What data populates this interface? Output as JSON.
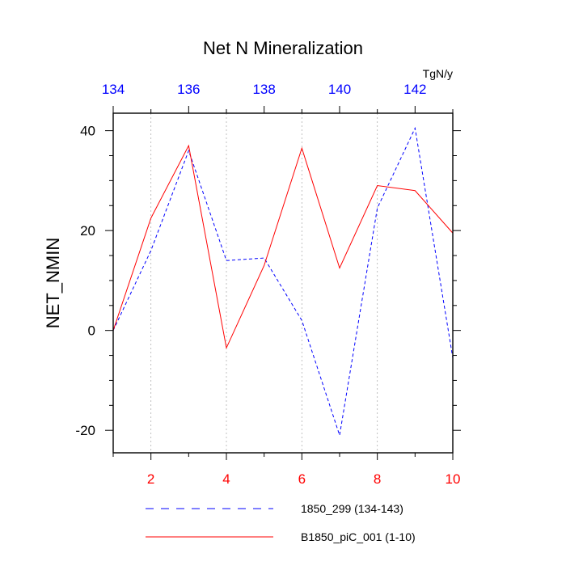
{
  "chart_data": {
    "type": "line",
    "title": "Net N Mineralization",
    "ylabel": "NET_NMIN",
    "units": "TgN/y",
    "xlim": [
      1,
      10
    ],
    "ylim": [
      -24.5,
      43.5
    ],
    "top_xlim": [
      134,
      143
    ],
    "bottom_ticks": [
      2,
      4,
      6,
      8,
      10
    ],
    "top_ticks": [
      134,
      136,
      138,
      140,
      142
    ],
    "y_ticks": [
      -20,
      0,
      20,
      40
    ],
    "grid": "vertical dotted",
    "colors": {
      "top_axis": "#0000ff",
      "bottom_axis": "#ff0000"
    },
    "series": [
      {
        "name": "1850_299 (134-143)",
        "color": "#0000ff",
        "dash": "dashed",
        "axis": "top",
        "x": [
          134,
          135,
          136,
          137,
          138,
          139,
          140,
          141,
          142,
          143
        ],
        "values": [
          0.0,
          16.0,
          36.0,
          14.0,
          14.5,
          2.0,
          -21.0,
          24.5,
          40.5,
          -5.5
        ]
      },
      {
        "name": "B1850_piC_001 (1-10)",
        "color": "#ff0000",
        "dash": "solid",
        "axis": "bottom",
        "x": [
          1,
          2,
          3,
          4,
          5,
          6,
          7,
          8,
          9,
          10
        ],
        "values": [
          0.0,
          22.5,
          37.0,
          -3.5,
          13.0,
          36.5,
          12.5,
          29.0,
          28.0,
          19.5
        ]
      }
    ]
  }
}
